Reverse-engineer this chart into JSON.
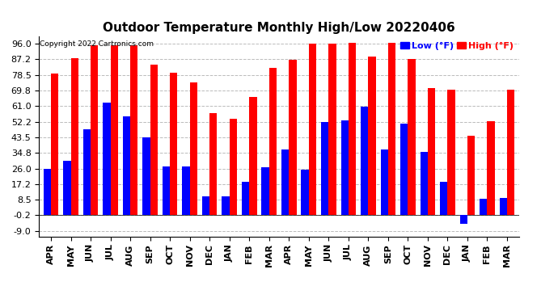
{
  "title": "Outdoor Temperature Monthly High/Low 20220406",
  "copyright": "Copyright 2022 Cartronics.com",
  "legend_low": "Low (°F)",
  "legend_high": "High (°F)",
  "months": [
    "APR",
    "MAY",
    "JUN",
    "JUL",
    "AUG",
    "SEP",
    "OCT",
    "NOV",
    "DEC",
    "JAN",
    "FEB",
    "MAR",
    "APR",
    "MAY",
    "JUN",
    "JUL",
    "AUG",
    "SEP",
    "OCT",
    "NOV",
    "DEC",
    "JAN",
    "FEB",
    "MAR"
  ],
  "high": [
    79.0,
    88.0,
    95.0,
    95.0,
    95.0,
    84.0,
    79.5,
    74.0,
    57.0,
    54.0,
    66.0,
    82.5,
    87.0,
    96.0,
    96.0,
    96.5,
    88.5,
    96.5,
    87.5,
    71.0,
    70.0,
    44.5,
    52.5,
    70.0
  ],
  "low": [
    26.0,
    30.5,
    48.0,
    63.0,
    55.0,
    43.5,
    27.0,
    27.0,
    10.5,
    10.5,
    18.5,
    26.5,
    36.5,
    25.5,
    52.0,
    53.0,
    60.5,
    36.5,
    51.0,
    35.5,
    18.5,
    -5.0,
    9.0,
    9.5
  ],
  "yticks": [
    -9.0,
    -0.2,
    8.5,
    17.2,
    26.0,
    34.8,
    43.5,
    52.2,
    61.0,
    69.8,
    78.5,
    87.2,
    96.0
  ],
  "ylim": [
    -12.0,
    100.0
  ],
  "bar_color_high": "#ff0000",
  "bar_color_low": "#0000ff",
  "background_color": "#ffffff",
  "grid_color": "#bbbbbb",
  "title_fontsize": 11,
  "tick_fontsize": 8,
  "label_fontsize": 8
}
